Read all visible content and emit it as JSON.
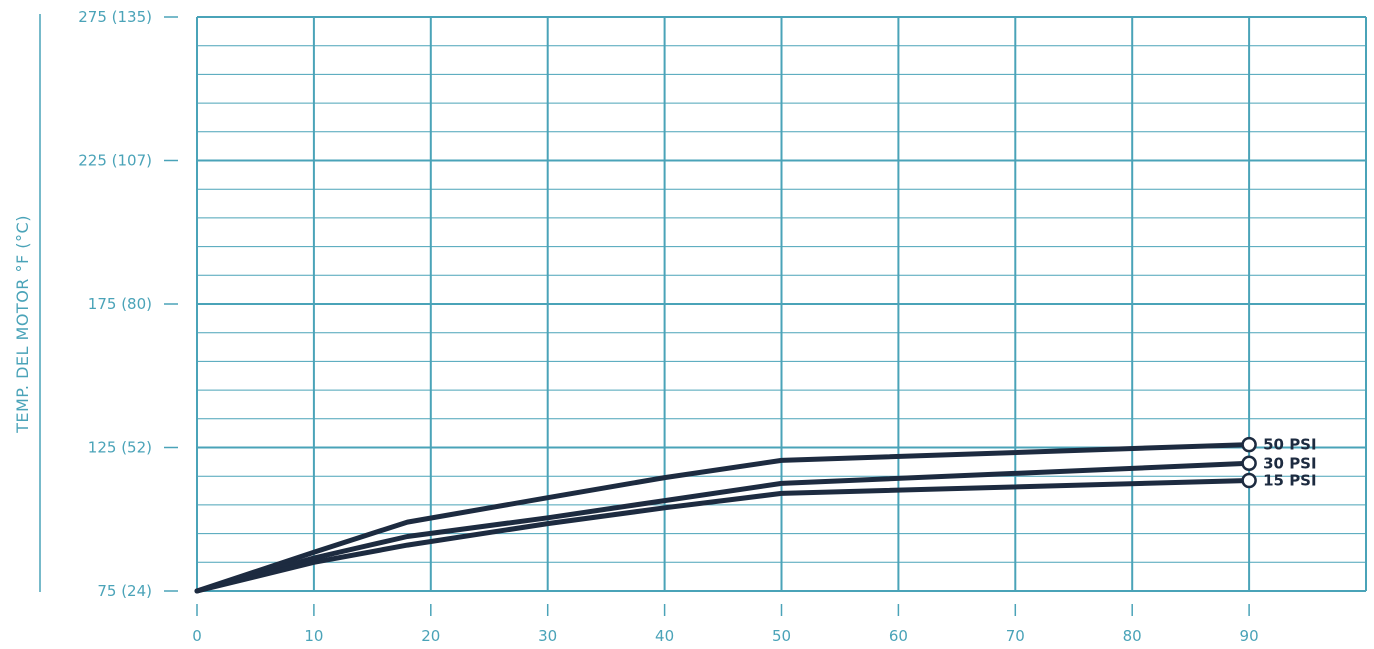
{
  "chart_data": {
    "type": "line",
    "title": "",
    "xlabel": "",
    "ylabel": "TEMP. DEL MOTOR °F (°C)",
    "xlim": [
      0,
      100
    ],
    "ylim": [
      75,
      275
    ],
    "x_ticks": [
      0,
      10,
      20,
      30,
      40,
      50,
      60,
      70,
      80,
      90
    ],
    "x_tick_labels": [
      "0",
      "10",
      "20",
      "30",
      "40",
      "50",
      "60",
      "70",
      "80",
      "90"
    ],
    "y_ticks": [
      75,
      125,
      175,
      225,
      275
    ],
    "y_tick_labels": [
      "75  (24)",
      "125  (52)",
      "175  (80)",
      "225 (107)",
      "275 (135)"
    ],
    "grid": true,
    "colors": {
      "grid": "#4aa3b8",
      "series": "#1d2b40",
      "labels": "#4aa3b8"
    },
    "series": [
      {
        "name": "50 PSI",
        "x": [
          0,
          10,
          18,
          30,
          40,
          50,
          90
        ],
        "y": [
          75,
          88.5,
          99,
          107.5,
          114.5,
          120.5,
          126
        ]
      },
      {
        "name": "30 PSI",
        "x": [
          0,
          10,
          18,
          30,
          40,
          50,
          90
        ],
        "y": [
          75,
          86.5,
          94,
          100.5,
          106.5,
          112.5,
          119.5
        ]
      },
      {
        "name": "15 PSI",
        "x": [
          0,
          10,
          18,
          30,
          40,
          50,
          90
        ],
        "y": [
          75,
          85,
          91,
          98.5,
          104,
          109,
          113.5
        ]
      }
    ]
  }
}
